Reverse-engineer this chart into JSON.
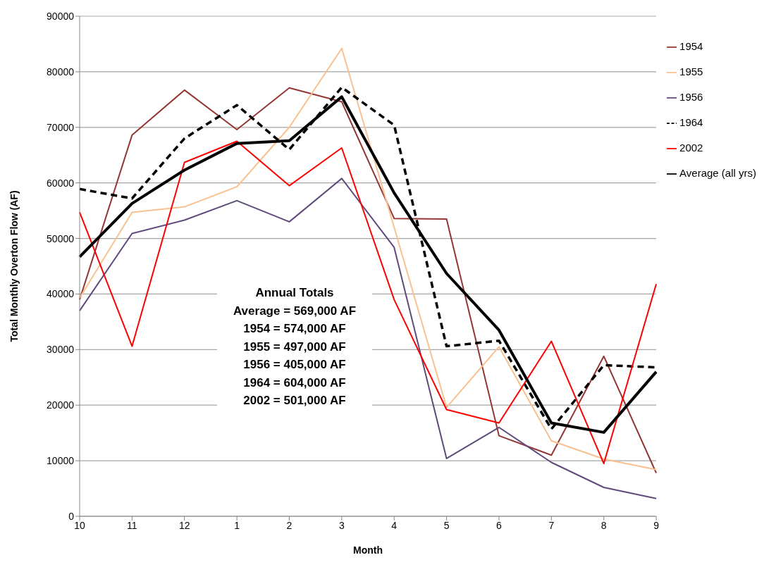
{
  "chart_data": {
    "type": "line",
    "xlabel": "Month",
    "ylabel": "Total Monthly Overton Flow (AF)",
    "categories": [
      "10",
      "11",
      "12",
      "1",
      "2",
      "3",
      "4",
      "5",
      "6",
      "7",
      "8",
      "9"
    ],
    "series": [
      {
        "name": "1954",
        "color": "#943634",
        "values": [
          39000,
          68600,
          76700,
          69600,
          77100,
          74600,
          53600,
          53500,
          14500,
          11000,
          28800,
          7800
        ]
      },
      {
        "name": "1955",
        "color": "#fac08f",
        "values": [
          39300,
          54700,
          55700,
          59300,
          70000,
          84200,
          52000,
          19600,
          30500,
          13600,
          10300,
          8400
        ]
      },
      {
        "name": "1956",
        "color": "#604a7b",
        "values": [
          37000,
          50900,
          53300,
          56800,
          53000,
          60800,
          48400,
          10400,
          16000,
          9700,
          5200,
          3200
        ]
      },
      {
        "name": "1964",
        "color": "#000000",
        "line_style": "dashed",
        "values": [
          58900,
          57200,
          68000,
          74000,
          66000,
          77200,
          70400,
          30600,
          31600,
          15700,
          27200,
          26800
        ]
      },
      {
        "name": "2002",
        "color": "#ff0000",
        "values": [
          54700,
          30600,
          63700,
          67500,
          59500,
          66300,
          39000,
          19200,
          16800,
          31500,
          9500,
          41800
        ]
      },
      {
        "name": "Average (all yrs)",
        "color": "#000000",
        "values": [
          46700,
          56300,
          62300,
          67100,
          67600,
          75500,
          58200,
          43700,
          33500,
          16800,
          15100,
          26000
        ]
      }
    ],
    "ylim": [
      0,
      90000
    ],
    "yticks": [
      0,
      10000,
      20000,
      30000,
      40000,
      50000,
      60000,
      70000,
      80000,
      90000
    ],
    "grid": "y",
    "legend": "right",
    "line_style": "solid",
    "marker": "none",
    "annotations": [
      "Annual Totals",
      "Average = 569,000 AF",
      "1954 = 574,000 AF",
      "1955 = 497,000 AF",
      "1956 = 405,000 AF",
      "1964 = 604,000 AF",
      "2002 = 501,000 AF"
    ]
  }
}
